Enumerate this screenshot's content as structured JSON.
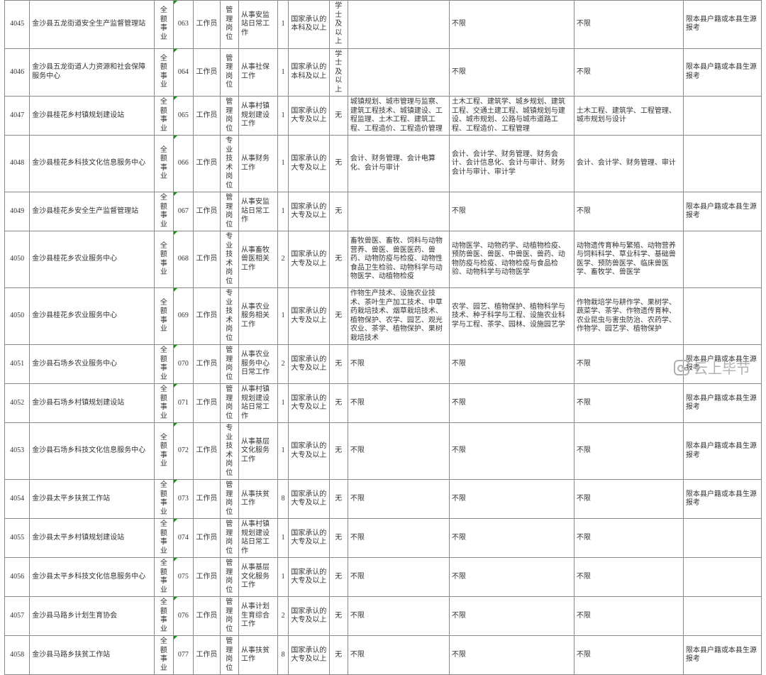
{
  "column_widths": [
    "col-code",
    "col-unit",
    "col-fund",
    "col-pcode",
    "col-pname",
    "col-ptype",
    "col-duty",
    "col-cnt",
    "col-edu",
    "col-deg",
    "col-maj",
    "col-b",
    "col-m",
    "col-other"
  ],
  "watermark": "云上毕节",
  "styles": {
    "font_size_pt": 10,
    "border_color": "#888888",
    "text_color": "#333333",
    "bg_color": "#ffffff",
    "corner_color": "#00a000",
    "watermark_color": "#b0b0b0",
    "watermark_fontsize": 20
  },
  "rows": [
    {
      "code": "4045",
      "unit": "金沙县五龙街道安全生产监督管理站",
      "fund": "全额事业",
      "pcode": "063",
      "pname": "工作员",
      "ptype": "管理岗位",
      "duty": "从事安监站日常工作",
      "cnt": "1",
      "edu": "国家承认的本科及以上",
      "deg": "学士及以上",
      "maj": "",
      "b": "不限",
      "m": "不限",
      "other": "限本县户籍或本县生源报考"
    },
    {
      "code": "4046",
      "unit": "金沙县五龙街道人力资源和社会保障服务中心",
      "fund": "全额事业",
      "pcode": "064",
      "pname": "工作员",
      "ptype": "管理岗位",
      "duty": "从事社保工作",
      "cnt": "1",
      "edu": "国家承认的本科及以上",
      "deg": "学士及以上",
      "maj": "",
      "b": "不限",
      "m": "不限",
      "other": "限本县户籍或本县生源报考"
    },
    {
      "code": "4047",
      "unit": "金沙县桂花乡村镇规划建设站",
      "fund": "全额事业",
      "pcode": "065",
      "pname": "工作员",
      "ptype": "管理岗位",
      "duty": "从事村镇规划建设工作",
      "cnt": "1",
      "edu": "国家承认的大专及以上",
      "deg": "无",
      "maj": "城镇规划、城市管理与监察、建筑工程技术、城镇建设、工程监理、土木工程、建筑工程、工程造价、工程造价管理",
      "b": "土木工程、建筑学、城乡规划、建筑工程、交通土建工程、城镇规划与建设、城市规划、公路与城市道路工程、工程造价、工程管理",
      "m": "土木工程、建筑学、工程管理、城市规划与设计",
      "other": ""
    },
    {
      "code": "4048",
      "unit": "金沙县桂花乡科技文化信息服务中心",
      "fund": "全额事业",
      "pcode": "066",
      "pname": "工作员",
      "ptype": "专业技术岗位",
      "duty": "从事财务工作",
      "cnt": "1",
      "edu": "国家承认的大专及以上",
      "deg": "无",
      "maj": "会计、财务管理、会计电算化、会计与审计",
      "b": "会计、会计学、财务管理、财务会计、会计信息化、会计与审计、财务会计与审计、审计学",
      "m": "会计、会计学、财务管理、审计",
      "other": ""
    },
    {
      "code": "4049",
      "unit": "金沙县桂花乡安全生产监督管理站",
      "fund": "全额事业",
      "pcode": "067",
      "pname": "工作员",
      "ptype": "管理岗位",
      "duty": "从事安监站日常工作",
      "cnt": "1",
      "edu": "国家承认的大专及以上",
      "deg": "无",
      "maj": "",
      "b": "不限",
      "m": "不限",
      "other": "限本县户籍或本县生源报考"
    },
    {
      "code": "4050",
      "unit": "金沙县桂花乡农业服务中心",
      "fund": "全额事业",
      "pcode": "068",
      "pname": "工作员",
      "ptype": "专业技术岗位",
      "duty": "从事畜牧兽医相关工作",
      "cnt": "2",
      "edu": "国家承认的大专及以上",
      "deg": "无",
      "maj": "畜牧兽医、畜牧、饲料与动物营养、兽医、兽医医药、兽药、动物防疫与检疫、动物性食品卫生检验、动物科学与动物医学、动植物检疫",
      "b": "动物医学、动物药学、动植物检疫、预防兽医、兽医、中兽医、兽药、动物防疫与检疫、动物检疫与食品检验、动物科学与动物医学",
      "m": "动物遗传育种与繁殖、动物营养与饲料科学、草业科学、基础兽医学、预防兽医学、临床兽医学、畜牧学、兽医学",
      "other": ""
    },
    {
      "code": "4050",
      "unit": "金沙县桂花乡农业服务中心",
      "fund": "全额事业",
      "pcode": "069",
      "pname": "工作员",
      "ptype": "专业技术岗位",
      "duty": "从事农业服务相关工作",
      "cnt": "1",
      "edu": "国家承认的大专及以上",
      "deg": "无",
      "maj": "作物生产技术、设施农业技术、茶叶生产加工技术、中草药栽培技术、烟草栽培技术、植物保护、农学、园艺、观光农业、茶学、植物保护、果树栽培技术",
      "b": "农学、园艺、植物保护、植物科学与技术、种子科学与工程、设施农业科学与工程、茶学、园林、设施园艺学",
      "m": "作物栽培学与耕作学、果树学、蔬菜学、茶学、作物遗传育种、农业昆虫与害虫防治、农药学、作物学、园艺学、植物保护",
      "other": ""
    },
    {
      "code": "4051",
      "unit": "金沙县石场乡农业服务中心",
      "fund": "全额事业",
      "pcode": "070",
      "pname": "工作员",
      "ptype": "管理岗位",
      "duty": "从事农业服务中心日常工作",
      "cnt": "2",
      "edu": "国家承认的大专及以上",
      "deg": "无",
      "maj": "不限",
      "b": "不限",
      "m": "不限",
      "other": "限本县户籍或本县生源报考"
    },
    {
      "code": "4052",
      "unit": "金沙县石场乡村镇规划建设站",
      "fund": "全额事业",
      "pcode": "071",
      "pname": "工作员",
      "ptype": "管理岗位",
      "duty": "从事村镇规划建设站日常工作",
      "cnt": "1",
      "edu": "国家承认的大专及以上",
      "deg": "无",
      "maj": "不限",
      "b": "不限",
      "m": "不限",
      "other": "限本县户籍或本县生源报考"
    },
    {
      "code": "4053",
      "unit": "金沙县石场乡科技文化信息服务中心",
      "fund": "全额事业",
      "pcode": "072",
      "pname": "工作员",
      "ptype": "专业技术岗位",
      "duty": "从事基层文化服务工作",
      "cnt": "1",
      "edu": "国家承认的大专及以上",
      "deg": "无",
      "maj": "不限",
      "b": "不限",
      "m": "不限",
      "other": "限本县户籍或本县生源报考"
    },
    {
      "code": "4054",
      "unit": "金沙县太平乡扶贫工作站",
      "fund": "全额事业",
      "pcode": "073",
      "pname": "工作员",
      "ptype": "管理岗位",
      "duty": "从事扶贫工作",
      "cnt": "8",
      "edu": "国家承认的大专及以上",
      "deg": "无",
      "maj": "不限",
      "b": "不限",
      "m": "不限",
      "other": "限本县户籍或本县生源报考"
    },
    {
      "code": "4055",
      "unit": "金沙县太平乡村镇规划建设站",
      "fund": "全额事业",
      "pcode": "074",
      "pname": "工作员",
      "ptype": "管理岗位",
      "duty": "从事村镇规划建设站日常工作",
      "cnt": "1",
      "edu": "国家承认的大专及以上",
      "deg": "无",
      "maj": "不限",
      "b": "不限",
      "m": "不限",
      "other": ""
    },
    {
      "code": "4056",
      "unit": "金沙县太平乡科技文化信息服务中心",
      "fund": "全额事业",
      "pcode": "075",
      "pname": "工作员",
      "ptype": "管理岗位",
      "duty": "从事基层文化服务工作",
      "cnt": "1",
      "edu": "国家承认的大专及以上",
      "deg": "无",
      "maj": "不限",
      "b": "不限",
      "m": "不限",
      "other": ""
    },
    {
      "code": "4057",
      "unit": "金沙县马路乡计划生育协会",
      "fund": "全额事业",
      "pcode": "076",
      "pname": "工作员",
      "ptype": "管理岗位",
      "duty": "从事计划生育综合工作",
      "cnt": "2",
      "edu": "国家承认的大专及以上",
      "deg": "无",
      "maj": "不限",
      "b": "不限",
      "m": "不限",
      "other": ""
    },
    {
      "code": "4058",
      "unit": "金沙县马路乡扶贫工作站",
      "fund": "全额事业",
      "pcode": "077",
      "pname": "工作员",
      "ptype": "管理岗位",
      "duty": "从事扶贫工作",
      "cnt": "8",
      "edu": "国家承认的大专及以上",
      "deg": "无",
      "maj": "不限",
      "b": "不限",
      "m": "不限",
      "other": "限本县户籍或本县生源报考"
    }
  ]
}
